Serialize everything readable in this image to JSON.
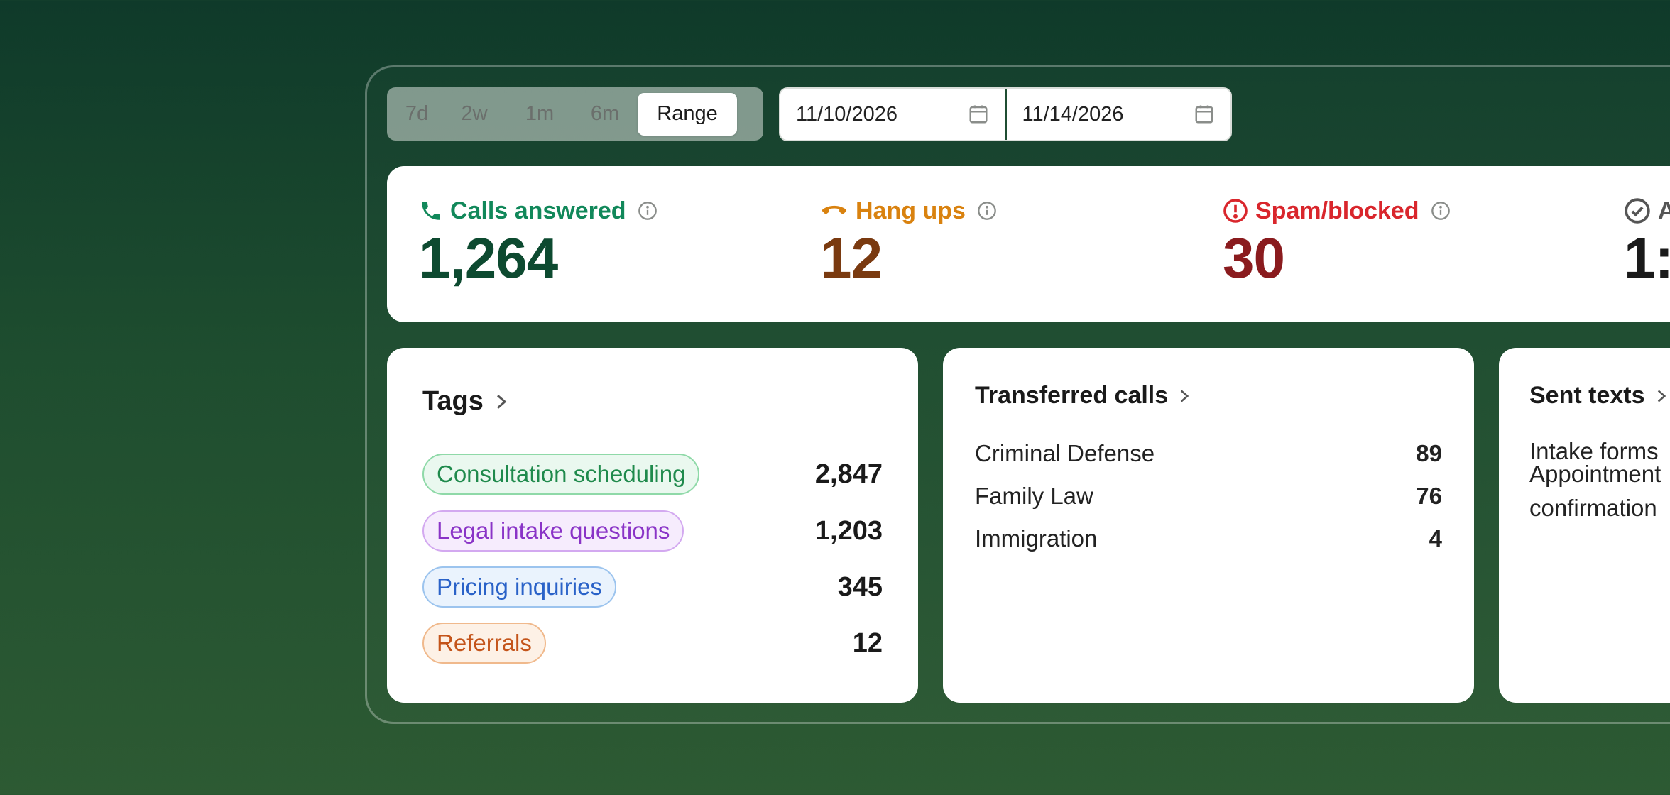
{
  "range": {
    "options": [
      "7d",
      "2w",
      "1m",
      "6m",
      "Range"
    ],
    "active": "Range"
  },
  "dates": {
    "start": "11/10/2026",
    "end": "11/14/2026"
  },
  "stats": {
    "calls_answered": {
      "label": "Calls answered",
      "value": "1,264",
      "color": "#11885a",
      "value_color": "#0d4a30"
    },
    "hang_ups": {
      "label": "Hang ups",
      "value": "12",
      "color": "#d9820f",
      "value_color": "#7a3a10"
    },
    "spam_blocked": {
      "label": "Spam/blocked",
      "value": "30",
      "color": "#d9262c",
      "value_color": "#8a1b1e"
    },
    "fourth": {
      "label": "A",
      "value": "1:"
    }
  },
  "tags": {
    "title": "Tags",
    "items": [
      {
        "label": "Consultation scheduling",
        "count": "2,847",
        "fg": "#1f8a4c",
        "bg": "#eaf8ef",
        "border": "#8fd9a8"
      },
      {
        "label": "Legal intake questions",
        "count": "1,203",
        "fg": "#8a34c7",
        "bg": "#f6ecfd",
        "border": "#d3a9f0"
      },
      {
        "label": "Pricing inquiries",
        "count": "345",
        "fg": "#2a62c8",
        "bg": "#eaf3fd",
        "border": "#9cc4ee"
      },
      {
        "label": "Referrals",
        "count": "12",
        "fg": "#c4541a",
        "bg": "#fdf1e6",
        "border": "#f0b98c"
      }
    ]
  },
  "transferred": {
    "title": "Transferred calls",
    "items": [
      {
        "label": "Criminal Defense",
        "count": "89"
      },
      {
        "label": "Family Law",
        "count": "76"
      },
      {
        "label": "Immigration",
        "count": "4"
      }
    ]
  },
  "texts": {
    "title": "Sent texts",
    "items": [
      "Intake forms",
      "Appointment",
      "confirmation"
    ]
  }
}
